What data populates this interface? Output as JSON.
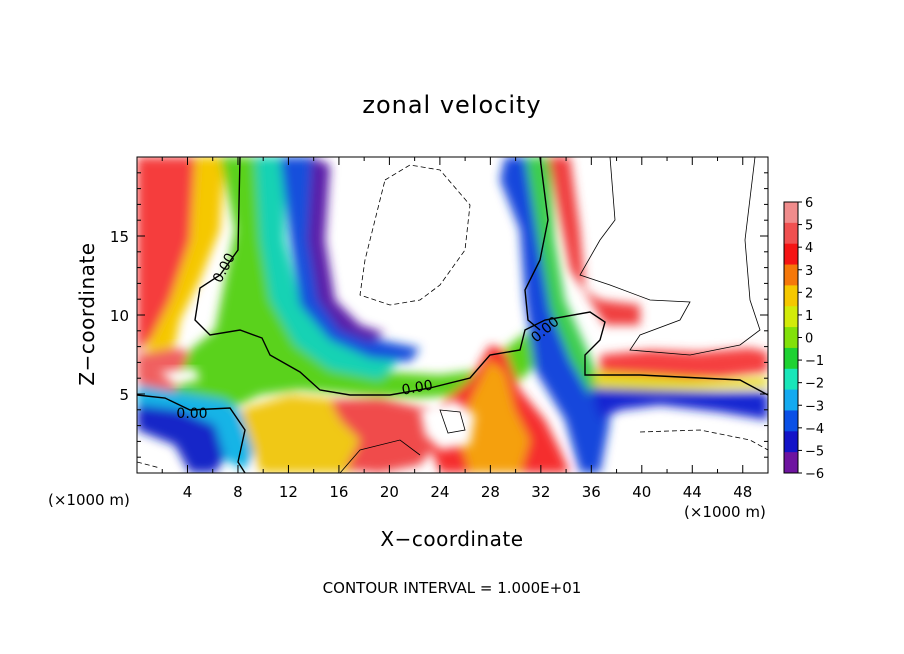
{
  "chart_data": {
    "type": "heatmap",
    "title": "zonal velocity",
    "xlabel": "X−coordinate",
    "ylabel": "Z−coordinate",
    "x_units_left": "(×1000 m)",
    "x_units_right": "(×1000 m)",
    "xlim": [
      0,
      50
    ],
    "ylim": [
      0,
      20
    ],
    "xticks": [
      4,
      8,
      12,
      16,
      20,
      24,
      28,
      32,
      36,
      40,
      44,
      48
    ],
    "yticks": [
      5,
      10,
      15
    ],
    "footer": "CONTOUR INTERVAL = 1.000E+01",
    "contour_labels": [
      "0.00",
      "0.00",
      "0.00",
      "0.00"
    ],
    "colorbar": {
      "ticks": [
        "6",
        "5",
        "4",
        "3",
        "2",
        "1",
        "0",
        "−1",
        "−2",
        "−3",
        "−4",
        "−5",
        "−6"
      ],
      "colors": [
        "#f08c8c",
        "#f05050",
        "#f51414",
        "#f5780a",
        "#f5c800",
        "#d2eb0a",
        "#82e10a",
        "#1ed232",
        "#19e6b9",
        "#14aaf0",
        "#0a50e6",
        "#1414c8",
        "#6e14a0"
      ]
    }
  }
}
